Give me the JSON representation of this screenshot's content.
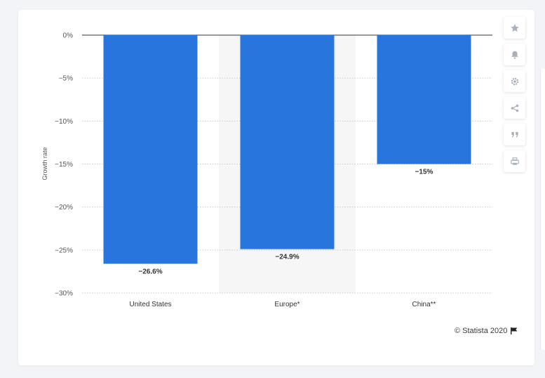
{
  "chart_data": {
    "type": "bar",
    "categories": [
      "United States",
      "Europe*",
      "China**"
    ],
    "values": [
      -26.6,
      -24.9,
      -15
    ],
    "data_labels": [
      "−26.6%",
      "−24.9%",
      "−15%"
    ],
    "ylabel": "Growth rate",
    "ylim": [
      -30,
      0
    ],
    "yticks": [
      0,
      -5,
      -10,
      -15,
      -20,
      -25,
      -30
    ],
    "ytick_labels": [
      "0%",
      "−5%",
      "−10%",
      "−15%",
      "−20%",
      "−25%",
      "−30%"
    ],
    "highlighted_category": "Europe*",
    "grid": true,
    "bar_color": "#2876dd"
  },
  "credit": {
    "text": "© Statista 2020",
    "icon": "flag-icon"
  },
  "toolbar": {
    "buttons": [
      {
        "name": "favorite-button",
        "icon": "star-icon"
      },
      {
        "name": "notification-button",
        "icon": "bell-icon"
      },
      {
        "name": "settings-button",
        "icon": "gear-icon"
      },
      {
        "name": "share-button",
        "icon": "share-icon"
      },
      {
        "name": "cite-button",
        "icon": "quote-icon"
      },
      {
        "name": "print-button",
        "icon": "print-icon"
      }
    ]
  }
}
